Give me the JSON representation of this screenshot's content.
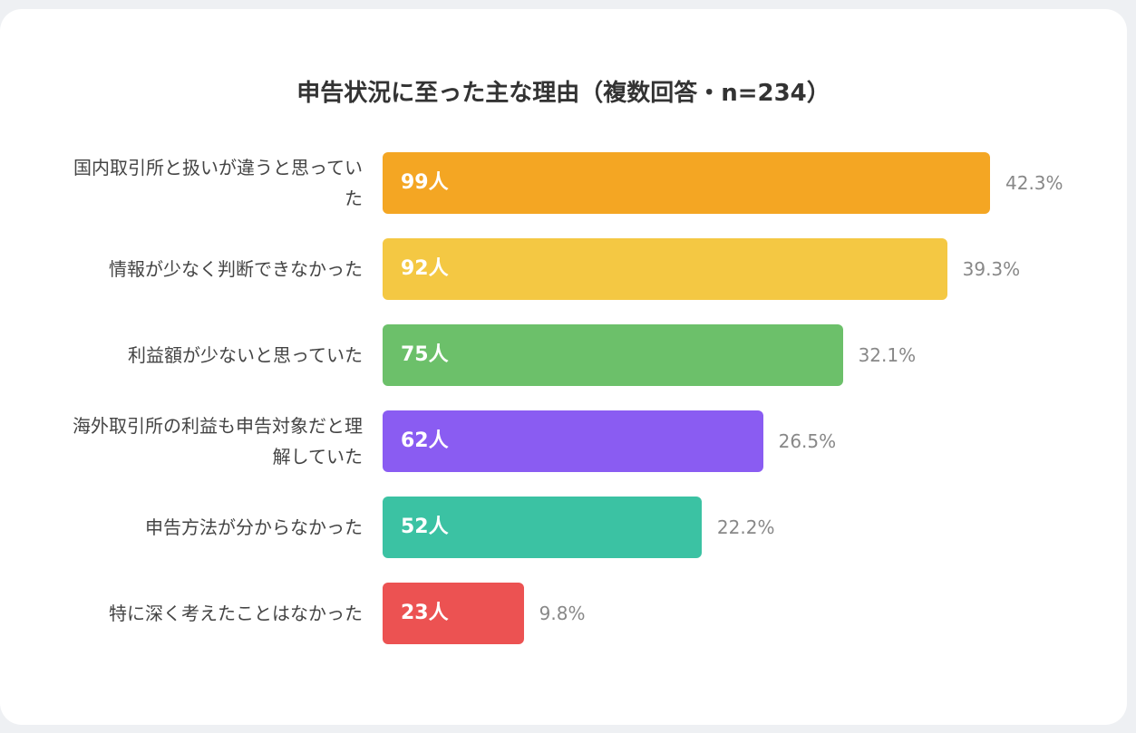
{
  "chart_data": {
    "type": "bar",
    "orientation": "horizontal",
    "title": "申告状況に至った主な理由（複数回答・n=234）",
    "categories": [
      "国内取引所と扱いが違うと思っていた",
      "情報が少なく判断できなかった",
      "利益額が少ないと思っていた",
      "海外取引所の利益も申告対象だと理解していた",
      "申告方法が分からなかった",
      "特に深く考えたことはなかった"
    ],
    "values": [
      99,
      92,
      75,
      62,
      52,
      23
    ],
    "value_labels": [
      "99人",
      "92人",
      "75人",
      "62人",
      "52人",
      "23人"
    ],
    "percent_labels": [
      "42.3%",
      "39.3%",
      "32.1%",
      "26.5%",
      "22.2%",
      "9.8%"
    ],
    "colors": [
      "#f4a623",
      "#f4c843",
      "#6cc06a",
      "#8a5cf2",
      "#3bc2a3",
      "#ec5252"
    ]
  }
}
